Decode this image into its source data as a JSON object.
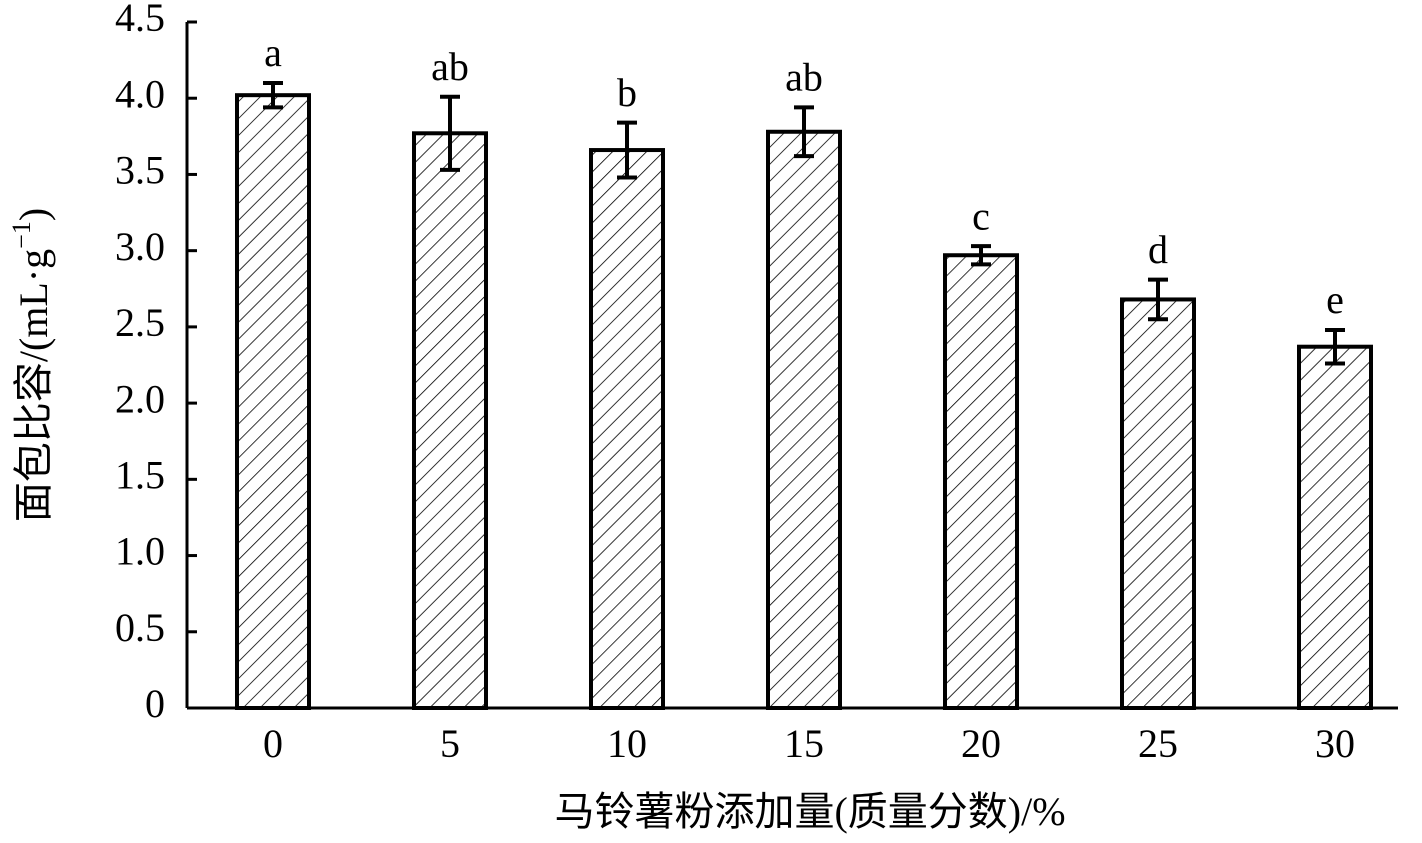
{
  "chart_data": {
    "type": "bar",
    "x_label": "马铃薯粉添加量(质量分数)/%",
    "y_label": "面包比容/(mL·g",
    "y_label_sup": "−1",
    "y_label_end": ")",
    "categories": [
      "0",
      "5",
      "10",
      "15",
      "20",
      "25",
      "30"
    ],
    "values": [
      4.02,
      3.77,
      3.66,
      3.78,
      2.97,
      2.68,
      2.37
    ],
    "errors": [
      0.08,
      0.24,
      0.18,
      0.16,
      0.06,
      0.13,
      0.11
    ],
    "significance": [
      "a",
      "ab",
      "b",
      "ab",
      "c",
      "d",
      "e"
    ],
    "color": "#000000",
    "hatch": true,
    "ylim": [
      0,
      4.5
    ],
    "yticks": [
      0,
      0.5,
      {
        "value": 1,
        "label": "1.0"
      },
      1.5,
      {
        "value": 2,
        "label": "2.0"
      },
      2.5,
      {
        "value": 3,
        "label": "3.0"
      },
      3.5,
      {
        "value": 4,
        "label": "4.0"
      },
      4.5
    ],
    "grid": false
  }
}
